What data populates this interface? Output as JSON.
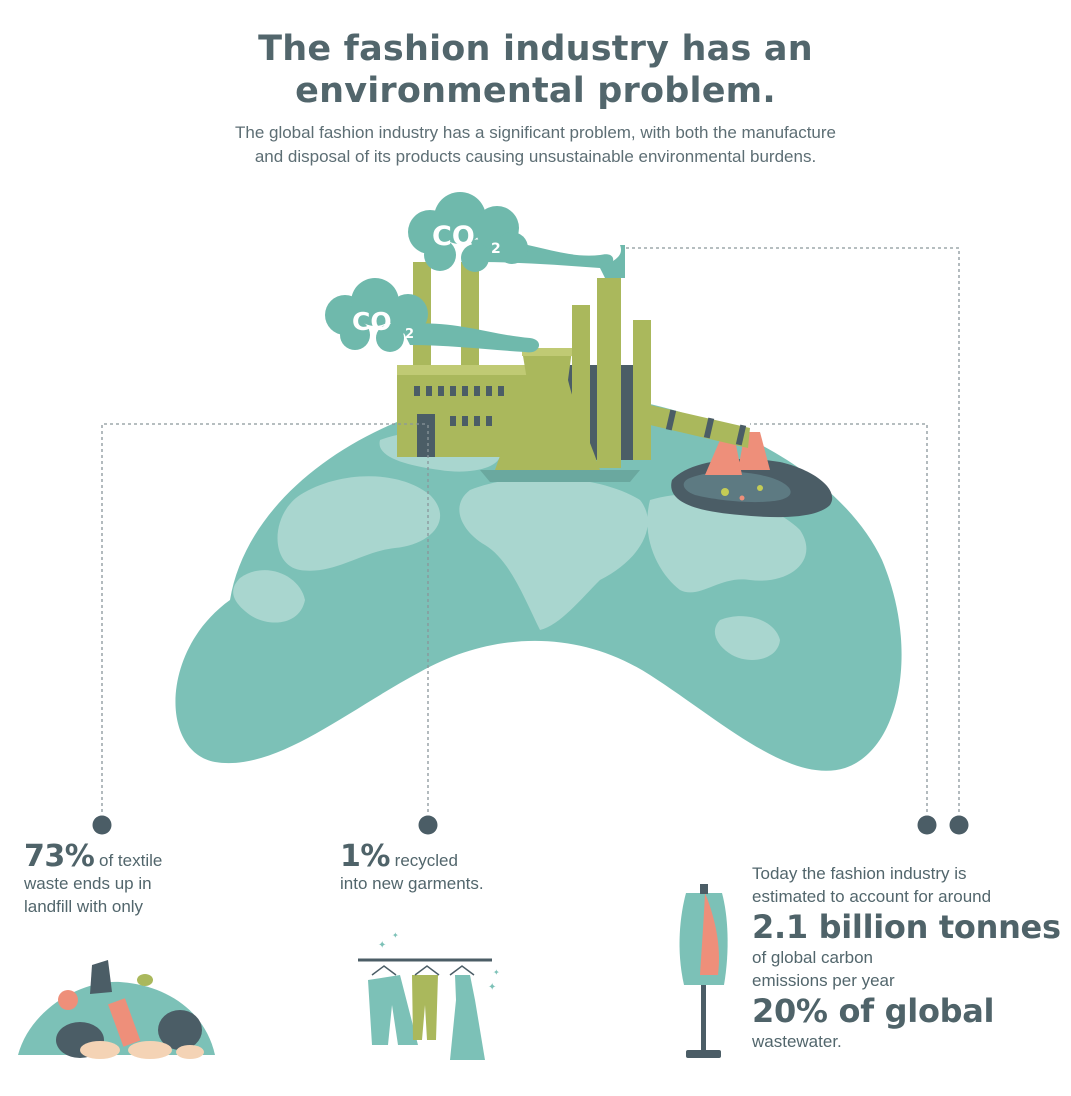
{
  "header": {
    "title_line1": "The fashion industry has an",
    "title_line2": "environmental problem.",
    "subtitle_line1": "The global fashion industry has a significant problem, with both the manufacture",
    "subtitle_line2": "and disposal of its products causing unsustainable environmental burdens."
  },
  "illustration": {
    "cloud_left_label": "CO",
    "cloud_left_sub": "2",
    "cloud_top_label": "CO",
    "cloud_top_sub": "2",
    "icons": [
      "globe-icon",
      "factory-icon",
      "pollution-spill-icon",
      "landfill-bags-icon",
      "clothes-rack-icon",
      "dress-mannequin-icon"
    ]
  },
  "stats": {
    "landfill": {
      "value": "73%",
      "text1": " of textile",
      "text2": "waste ends up in",
      "text3": "landfill with only"
    },
    "recycled": {
      "value": "1%",
      "text1": " recycled",
      "text2": "into new garments."
    },
    "emissions": {
      "intro1": "Today the fashion industry is",
      "intro2": "estimated to account for around",
      "value1": "2.1 billion tonnes",
      "text1": "of global carbon",
      "text2": "emissions per year",
      "value2": "20% of global",
      "text3": "wastewater."
    }
  },
  "colors": {
    "globe": "#7cc1b7",
    "land": "#a9d6cf",
    "factory": "#aab85c",
    "factory_dark": "#7f8a43",
    "smoke": "#6fb9ac",
    "heading": "#52666c",
    "dot": "#4b5d66",
    "accent_coral": "#ee8f7a"
  }
}
